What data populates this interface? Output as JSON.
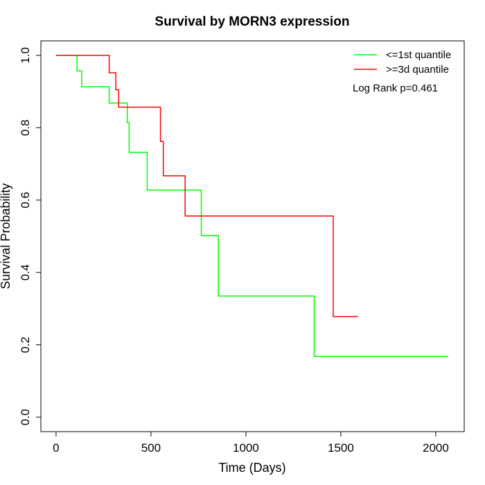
{
  "chart_data": {
    "type": "line",
    "title": "Survival by MORN3 expression",
    "xlabel": "Time (Days)",
    "ylabel": "Survival Probability",
    "xlim": [
      -80,
      2150
    ],
    "ylim": [
      -0.04,
      1.04
    ],
    "x_ticks": [
      0,
      500,
      1000,
      1500,
      2000
    ],
    "y_ticks": [
      0.0,
      0.2,
      0.4,
      0.6,
      0.8,
      1.0
    ],
    "x_tick_labels": [
      "0",
      "500",
      "1000",
      "1500",
      "2000"
    ],
    "y_tick_labels": [
      "0.0",
      "0.2",
      "0.4",
      "0.6",
      "0.8",
      "1.0"
    ],
    "grid": false,
    "legend_position": "top-right",
    "series": [
      {
        "name": "<=1st quantile",
        "color": "#00ff00",
        "step": true,
        "x": [
          0,
          110,
          135,
          280,
          375,
          385,
          480,
          765,
          855,
          1360,
          2065
        ],
        "y": [
          1.0,
          0.957,
          0.913,
          0.868,
          0.814,
          0.732,
          0.628,
          0.502,
          0.335,
          0.168,
          0.168
        ]
      },
      {
        "name": ">=3d quantile",
        "color": "#ff0000",
        "step": true,
        "x": [
          0,
          280,
          315,
          330,
          550,
          565,
          680,
          1460,
          1590
        ],
        "y": [
          1.0,
          0.952,
          0.905,
          0.857,
          0.762,
          0.667,
          0.556,
          0.278,
          0.278
        ]
      }
    ],
    "annotations": [
      "Log Rank p=0.461"
    ]
  }
}
